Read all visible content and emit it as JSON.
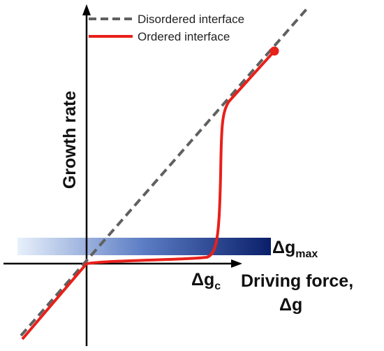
{
  "legend": {
    "items": [
      {
        "label": "Disordered interface"
      },
      {
        "label": "Ordered interface"
      }
    ]
  },
  "axes": {
    "y_label": "Growth rate",
    "x_label": {
      "line1": "Driving force,",
      "line2": "Δg"
    }
  },
  "annotations": {
    "band": {
      "label": "Δg",
      "subscript": "max"
    },
    "critical": {
      "label": "Δg",
      "subscript": "c"
    }
  }
}
